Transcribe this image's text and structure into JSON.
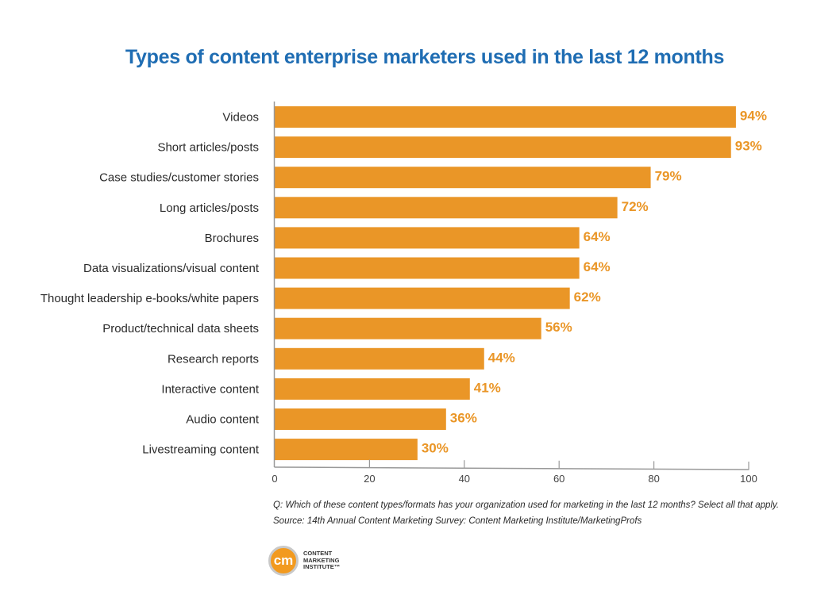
{
  "chart_data": {
    "type": "bar",
    "orientation": "horizontal",
    "title": "Types of content enterprise marketers used in the last 12 months",
    "xlabel": "",
    "ylabel": "",
    "xlim": [
      0,
      100
    ],
    "x_ticks": [
      "0",
      "20",
      "40",
      "60",
      "80",
      "100"
    ],
    "grid": false,
    "categories": [
      "Videos",
      "Short articles/posts",
      "Case studies/customer stories",
      "Long articles/posts",
      "Brochures",
      "Data visualizations/visual content",
      "Thought leadership e-books/white papers",
      "Product/technical data sheets",
      "Research reports",
      "Interactive content",
      "Audio content",
      "Livestreaming content"
    ],
    "values": [
      94,
      93,
      79,
      72,
      64,
      64,
      62,
      56,
      44,
      41,
      36,
      30
    ],
    "value_labels": [
      "94%",
      "93%",
      "79%",
      "72%",
      "64%",
      "64%",
      "62%",
      "56%",
      "44%",
      "41%",
      "36%",
      "30%"
    ],
    "colors": {
      "bar": "#ea9627",
      "title": "#1f6db3",
      "axis": "#999999"
    }
  },
  "notes": {
    "question": "Q: Which of these content types/formats has your organization used for marketing in the last 12 months? Select all that apply.",
    "source": "Source: 14th Annual Content Marketing Survey: Content Marketing Institute/MarketingProfs"
  },
  "logo": {
    "mark": "cm",
    "line1": "CONTENT",
    "line2": "MARKETING",
    "line3": "INSTITUTE™"
  }
}
